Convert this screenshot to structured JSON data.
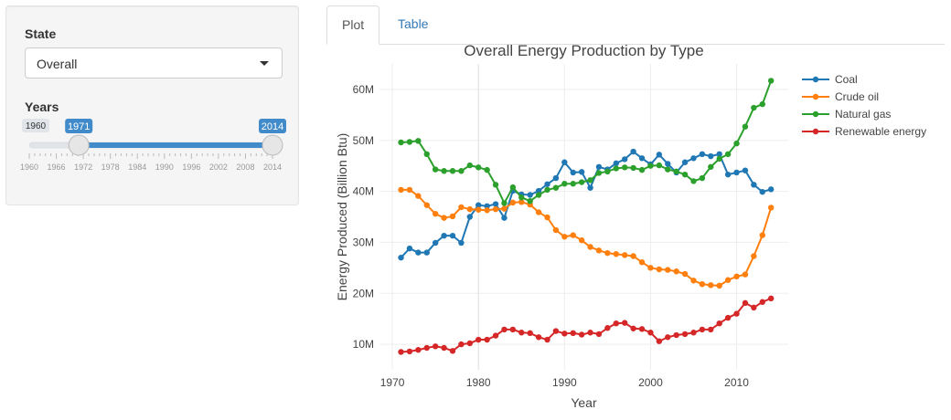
{
  "sidebar": {
    "state_label": "State",
    "state_value": "Overall",
    "years_label": "Years",
    "slider": {
      "min": 1960,
      "max": 2014,
      "from": 1971,
      "to": 2014,
      "min_label": "1960",
      "from_label": "1971",
      "to_label": "2014",
      "ticks": [
        "1960",
        "1966",
        "1972",
        "1978",
        "1984",
        "1990",
        "1996",
        "2002",
        "2008",
        "2014"
      ],
      "accent": "#428bca"
    }
  },
  "tabs": [
    {
      "label": "Plot",
      "active": true
    },
    {
      "label": "Table",
      "active": false
    }
  ],
  "chart_data": {
    "type": "line",
    "title": "Overall Energy Production by Type",
    "xlabel": "Year",
    "ylabel": "Energy Produced (Billion Btu)",
    "xlim": [
      1968.5,
      2016
    ],
    "ylim": [
      5000000,
      65000000
    ],
    "x_ticks": [
      "1970",
      "1980",
      "1990",
      "2000",
      "2010"
    ],
    "y_ticks": [
      {
        "value": 10000000,
        "label": "10M"
      },
      {
        "value": 20000000,
        "label": "20M"
      },
      {
        "value": 30000000,
        "label": "30M"
      },
      {
        "value": 40000000,
        "label": "40M"
      },
      {
        "value": 50000000,
        "label": "50M"
      },
      {
        "value": 60000000,
        "label": "60M"
      }
    ],
    "grid": true,
    "legend_position": "top-right",
    "x": [
      1971,
      1972,
      1973,
      1974,
      1975,
      1976,
      1977,
      1978,
      1979,
      1980,
      1981,
      1982,
      1983,
      1984,
      1985,
      1986,
      1987,
      1988,
      1989,
      1990,
      1991,
      1992,
      1993,
      1994,
      1995,
      1996,
      1997,
      1998,
      1999,
      2000,
      2001,
      2002,
      2003,
      2004,
      2005,
      2006,
      2007,
      2008,
      2009,
      2010,
      2011,
      2012,
      2013,
      2014
    ],
    "series": [
      {
        "name": "Coal",
        "color": "#1f77b4",
        "values": [
          27000000,
          28800000,
          28000000,
          28000000,
          29900000,
          31300000,
          31300000,
          29900000,
          35000000,
          37300000,
          37100000,
          37500000,
          34800000,
          40100000,
          39400000,
          39300000,
          40100000,
          41400000,
          42600000,
          45700000,
          43700000,
          43800000,
          40700000,
          44800000,
          44300000,
          45500000,
          46300000,
          47800000,
          46500000,
          45300000,
          47200000,
          45400000,
          43700000,
          45700000,
          46500000,
          47300000,
          46900000,
          47300000,
          43300000,
          43700000,
          44100000,
          41300000,
          39900000,
          40400000
        ]
      },
      {
        "name": "Crude oil",
        "color": "#ff7f0e",
        "values": [
          40300000,
          40300000,
          39100000,
          37300000,
          35600000,
          34800000,
          35100000,
          36900000,
          36500000,
          36400000,
          36300000,
          36500000,
          36600000,
          37800000,
          37900000,
          37400000,
          35900000,
          34900000,
          32400000,
          31100000,
          31400000,
          30400000,
          29100000,
          28400000,
          27900000,
          27700000,
          27500000,
          27300000,
          26100000,
          25000000,
          24700000,
          24600000,
          24300000,
          23800000,
          22500000,
          21800000,
          21600000,
          21500000,
          22600000,
          23300000,
          23700000,
          27300000,
          31400000,
          36800000
        ]
      },
      {
        "name": "Natural gas",
        "color": "#2ca02c",
        "values": [
          49600000,
          49700000,
          49900000,
          47300000,
          44300000,
          44000000,
          44000000,
          44000000,
          45100000,
          44700000,
          44200000,
          41300000,
          37700000,
          40800000,
          38800000,
          38100000,
          39300000,
          40300000,
          40700000,
          41500000,
          41500000,
          41800000,
          42200000,
          43600000,
          43900000,
          44500000,
          44700000,
          44600000,
          44200000,
          45000000,
          45100000,
          44300000,
          43900000,
          43300000,
          42000000,
          42600000,
          44800000,
          46400000,
          47300000,
          49400000,
          52700000,
          56400000,
          57100000,
          61700000
        ]
      },
      {
        "name": "Renewable energy",
        "color": "#d62728",
        "values": [
          8500000,
          8600000,
          8900000,
          9300000,
          9600000,
          9300000,
          8700000,
          10000000,
          10200000,
          10900000,
          10900000,
          11700000,
          12900000,
          12900000,
          12300000,
          12200000,
          11400000,
          10900000,
          12600000,
          12100000,
          12200000,
          11900000,
          12300000,
          12000000,
          13200000,
          14100000,
          14200000,
          13100000,
          13000000,
          12300000,
          10600000,
          11400000,
          11800000,
          12000000,
          12300000,
          12900000,
          12900000,
          14100000,
          15200000,
          16000000,
          18100000,
          17200000,
          18300000,
          19000000
        ]
      }
    ]
  }
}
